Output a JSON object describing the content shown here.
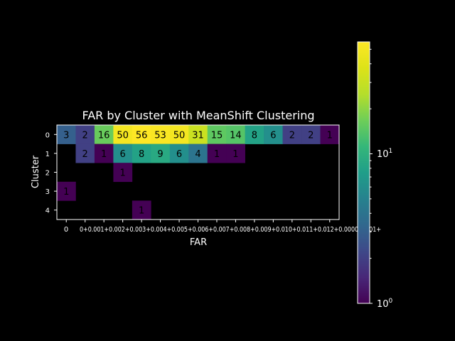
{
  "chart_data": {
    "type": "heatmap",
    "title": "FAR by Cluster with MeanShift Clustering",
    "xlabel": "FAR",
    "ylabel": "Cluster",
    "x_tick_labels": [
      "0",
      "0+0.001+0.002+0.003+0.004+0.005+0.006+0.007+0.008+0.009+0.010+0.011+0.012+0.000000001+"
    ],
    "y_tick_labels": [
      "0",
      "1",
      "2",
      "3",
      "4"
    ],
    "n_cols": 15,
    "cells": [
      [
        3,
        2,
        16,
        50,
        56,
        53,
        50,
        31,
        15,
        14,
        8,
        6,
        2,
        2,
        1
      ],
      [
        null,
        2,
        1,
        6,
        8,
        9,
        6,
        4,
        1,
        1,
        null,
        null,
        null,
        null,
        null
      ],
      [
        null,
        null,
        null,
        1,
        null,
        null,
        null,
        null,
        null,
        null,
        null,
        null,
        null,
        null,
        null
      ],
      [
        1,
        null,
        null,
        null,
        null,
        null,
        null,
        null,
        null,
        null,
        null,
        null,
        null,
        null,
        null
      ],
      [
        null,
        null,
        null,
        null,
        1,
        null,
        null,
        null,
        null,
        null,
        null,
        null,
        null,
        null,
        null
      ]
    ],
    "colorbar": {
      "colormap": "viridis",
      "scale": "log",
      "min": 1,
      "max": 56,
      "tick_labels": [
        "10^0",
        "10^1"
      ]
    }
  }
}
